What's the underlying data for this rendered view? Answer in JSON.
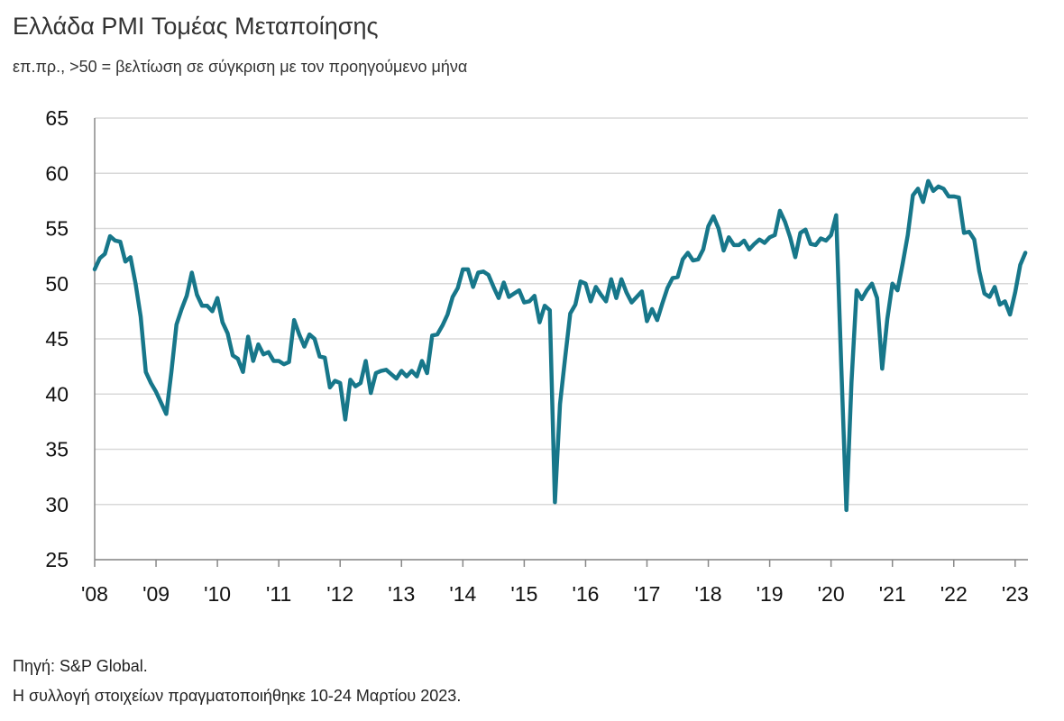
{
  "chart_data": {
    "type": "line",
    "title": "Ελλάδα PMI Τομέας Μεταποίησης",
    "subtitle": "επ.πρ., >50 = βελτίωση σε σύγκριση με τον προηγούμενο μήνα",
    "source": "Πηγή: S&P Global.",
    "note": "Η συλλογή στοιχείων πραγματοποιήθηκε 10-24 Μαρτίου 2023.",
    "categories": [
      "'08",
      null,
      null,
      null,
      null,
      null,
      null,
      null,
      null,
      null,
      null,
      null,
      "'09",
      null,
      null,
      null,
      null,
      null,
      null,
      null,
      null,
      null,
      null,
      null,
      "'10",
      null,
      null,
      null,
      null,
      null,
      null,
      null,
      null,
      null,
      null,
      null,
      "'11",
      null,
      null,
      null,
      null,
      null,
      null,
      null,
      null,
      null,
      null,
      null,
      "'12",
      null,
      null,
      null,
      null,
      null,
      null,
      null,
      null,
      null,
      null,
      null,
      "'13",
      null,
      null,
      null,
      null,
      null,
      null,
      null,
      null,
      null,
      null,
      null,
      "'14",
      null,
      null,
      null,
      null,
      null,
      null,
      null,
      null,
      null,
      null,
      null,
      "'15",
      null,
      null,
      null,
      null,
      null,
      null,
      null,
      null,
      null,
      null,
      null,
      "'16",
      null,
      null,
      null,
      null,
      null,
      null,
      null,
      null,
      null,
      null,
      null,
      "'17",
      null,
      null,
      null,
      null,
      null,
      null,
      null,
      null,
      null,
      null,
      null,
      "'18",
      null,
      null,
      null,
      null,
      null,
      null,
      null,
      null,
      null,
      null,
      null,
      "'19",
      null,
      null,
      null,
      null,
      null,
      null,
      null,
      null,
      null,
      null,
      null,
      "'20",
      null,
      null,
      null,
      null,
      null,
      null,
      null,
      null,
      null,
      null,
      null,
      "'21",
      null,
      null,
      null,
      null,
      null,
      null,
      null,
      null,
      null,
      null,
      null,
      "'22",
      null,
      null,
      null,
      null,
      null,
      null,
      null,
      null,
      null,
      null,
      null,
      "'23",
      null,
      null
    ],
    "series": [
      {
        "name": "PMI",
        "color": "#17778a",
        "values": [
          51.3,
          52.3,
          52.7,
          54.3,
          53.9,
          53.8,
          52.0,
          52.4,
          50.0,
          47.0,
          42.0,
          41.0,
          40.2,
          39.2,
          38.2,
          42.0,
          46.3,
          47.7,
          48.9,
          51.0,
          49.0,
          48.0,
          48.0,
          47.5,
          48.7,
          46.5,
          45.5,
          43.5,
          43.2,
          42.0,
          45.2,
          43.0,
          44.5,
          43.6,
          43.8,
          43.0,
          43.0,
          42.7,
          42.9,
          46.7,
          45.4,
          44.3,
          45.4,
          45.0,
          43.4,
          43.3,
          40.6,
          41.2,
          41.0,
          37.7,
          41.3,
          40.7,
          41.0,
          43.0,
          40.1,
          41.9,
          42.1,
          42.2,
          41.8,
          41.4,
          42.1,
          41.6,
          42.1,
          41.6,
          43.0,
          41.9,
          45.3,
          45.4,
          46.2,
          47.2,
          48.8,
          49.6,
          51.3,
          51.3,
          49.7,
          51.0,
          51.1,
          50.8,
          49.7,
          48.7,
          50.1,
          48.8,
          49.1,
          49.4,
          48.3,
          48.4,
          48.9,
          46.5,
          48.0,
          47.6,
          30.2,
          39.1,
          43.3,
          47.3,
          48.1,
          50.2,
          50.0,
          48.4,
          49.7,
          49.0,
          48.4,
          50.4,
          48.7,
          50.4,
          49.2,
          48.3,
          48.8,
          49.3,
          46.6,
          47.7,
          46.7,
          48.2,
          49.6,
          50.5,
          50.6,
          52.2,
          52.8,
          52.1,
          52.2,
          53.1,
          55.2,
          56.1,
          55.0,
          53.0,
          54.2,
          53.5,
          53.5,
          53.9,
          53.1,
          53.6,
          54.0,
          53.7,
          54.2,
          54.4,
          56.6,
          55.6,
          54.2,
          52.4,
          54.6,
          54.9,
          53.6,
          53.5,
          54.1,
          53.9,
          54.4,
          56.2,
          42.5,
          29.5,
          41.1,
          49.4,
          48.6,
          49.4,
          50.0,
          48.7,
          42.3,
          46.8,
          50.0,
          49.4,
          51.8,
          54.4,
          58.0,
          58.6,
          57.4,
          59.3,
          58.4,
          58.8,
          58.6,
          57.9,
          57.9,
          57.8,
          54.6,
          54.7,
          54.0,
          51.1,
          49.1,
          48.8,
          49.7,
          48.1,
          48.4,
          47.2,
          49.2,
          51.7,
          52.8
        ]
      }
    ],
    "ylim": [
      25,
      65
    ],
    "yticks": [
      25,
      30,
      35,
      40,
      45,
      50,
      55,
      60,
      65
    ],
    "grid": true
  }
}
